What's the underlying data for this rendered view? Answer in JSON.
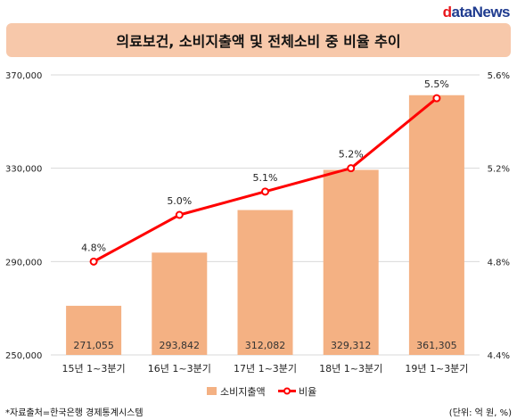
{
  "logo": {
    "first": "d",
    "rest": "ataNews"
  },
  "title": "의료보건, 소비지출액 및 전체소비 중 비율 추이",
  "source": "*자료출처=한국은행 경제통계시스템",
  "unit": "(단위: 억 원, %)",
  "colors": {
    "bar": "#f4b183",
    "line": "#ff0000",
    "marker_fill": "#ffffff",
    "title_bg": "#f7c8aa",
    "grid": "#d9d9d9"
  },
  "chart_data": {
    "type": "bar",
    "categories": [
      "15년 1~3분기",
      "16년 1~3분기",
      "17년 1~3분기",
      "18년 1~3분기",
      "19년 1~3분기"
    ],
    "series": [
      {
        "name": "소비지출액",
        "type": "bar",
        "axis": "left",
        "values": [
          271055,
          293842,
          312082,
          329312,
          361305
        ],
        "labels": [
          "271,055",
          "293,842",
          "312,082",
          "329,312",
          "361,305"
        ]
      },
      {
        "name": "비율",
        "type": "line",
        "axis": "right",
        "values": [
          4.8,
          5.0,
          5.1,
          5.2,
          5.5
        ],
        "labels": [
          "4.8%",
          "5.0%",
          "5.1%",
          "5.2%",
          "5.5%"
        ]
      }
    ],
    "y_left": {
      "min": 250000,
      "max": 370000,
      "ticks": [
        250000,
        290000,
        330000,
        370000
      ],
      "tick_labels": [
        "250,000",
        "290,000",
        "330,000",
        "370,000"
      ]
    },
    "y_right": {
      "min": 4.4,
      "max": 5.6,
      "ticks": [
        4.4,
        4.8,
        5.2,
        5.6
      ],
      "tick_labels": [
        "4.4%",
        "4.8%",
        "5.2%",
        "5.6%"
      ]
    },
    "grid": true,
    "legend": {
      "position": "bottom",
      "entries": [
        "소비지출액",
        "비율"
      ]
    }
  }
}
